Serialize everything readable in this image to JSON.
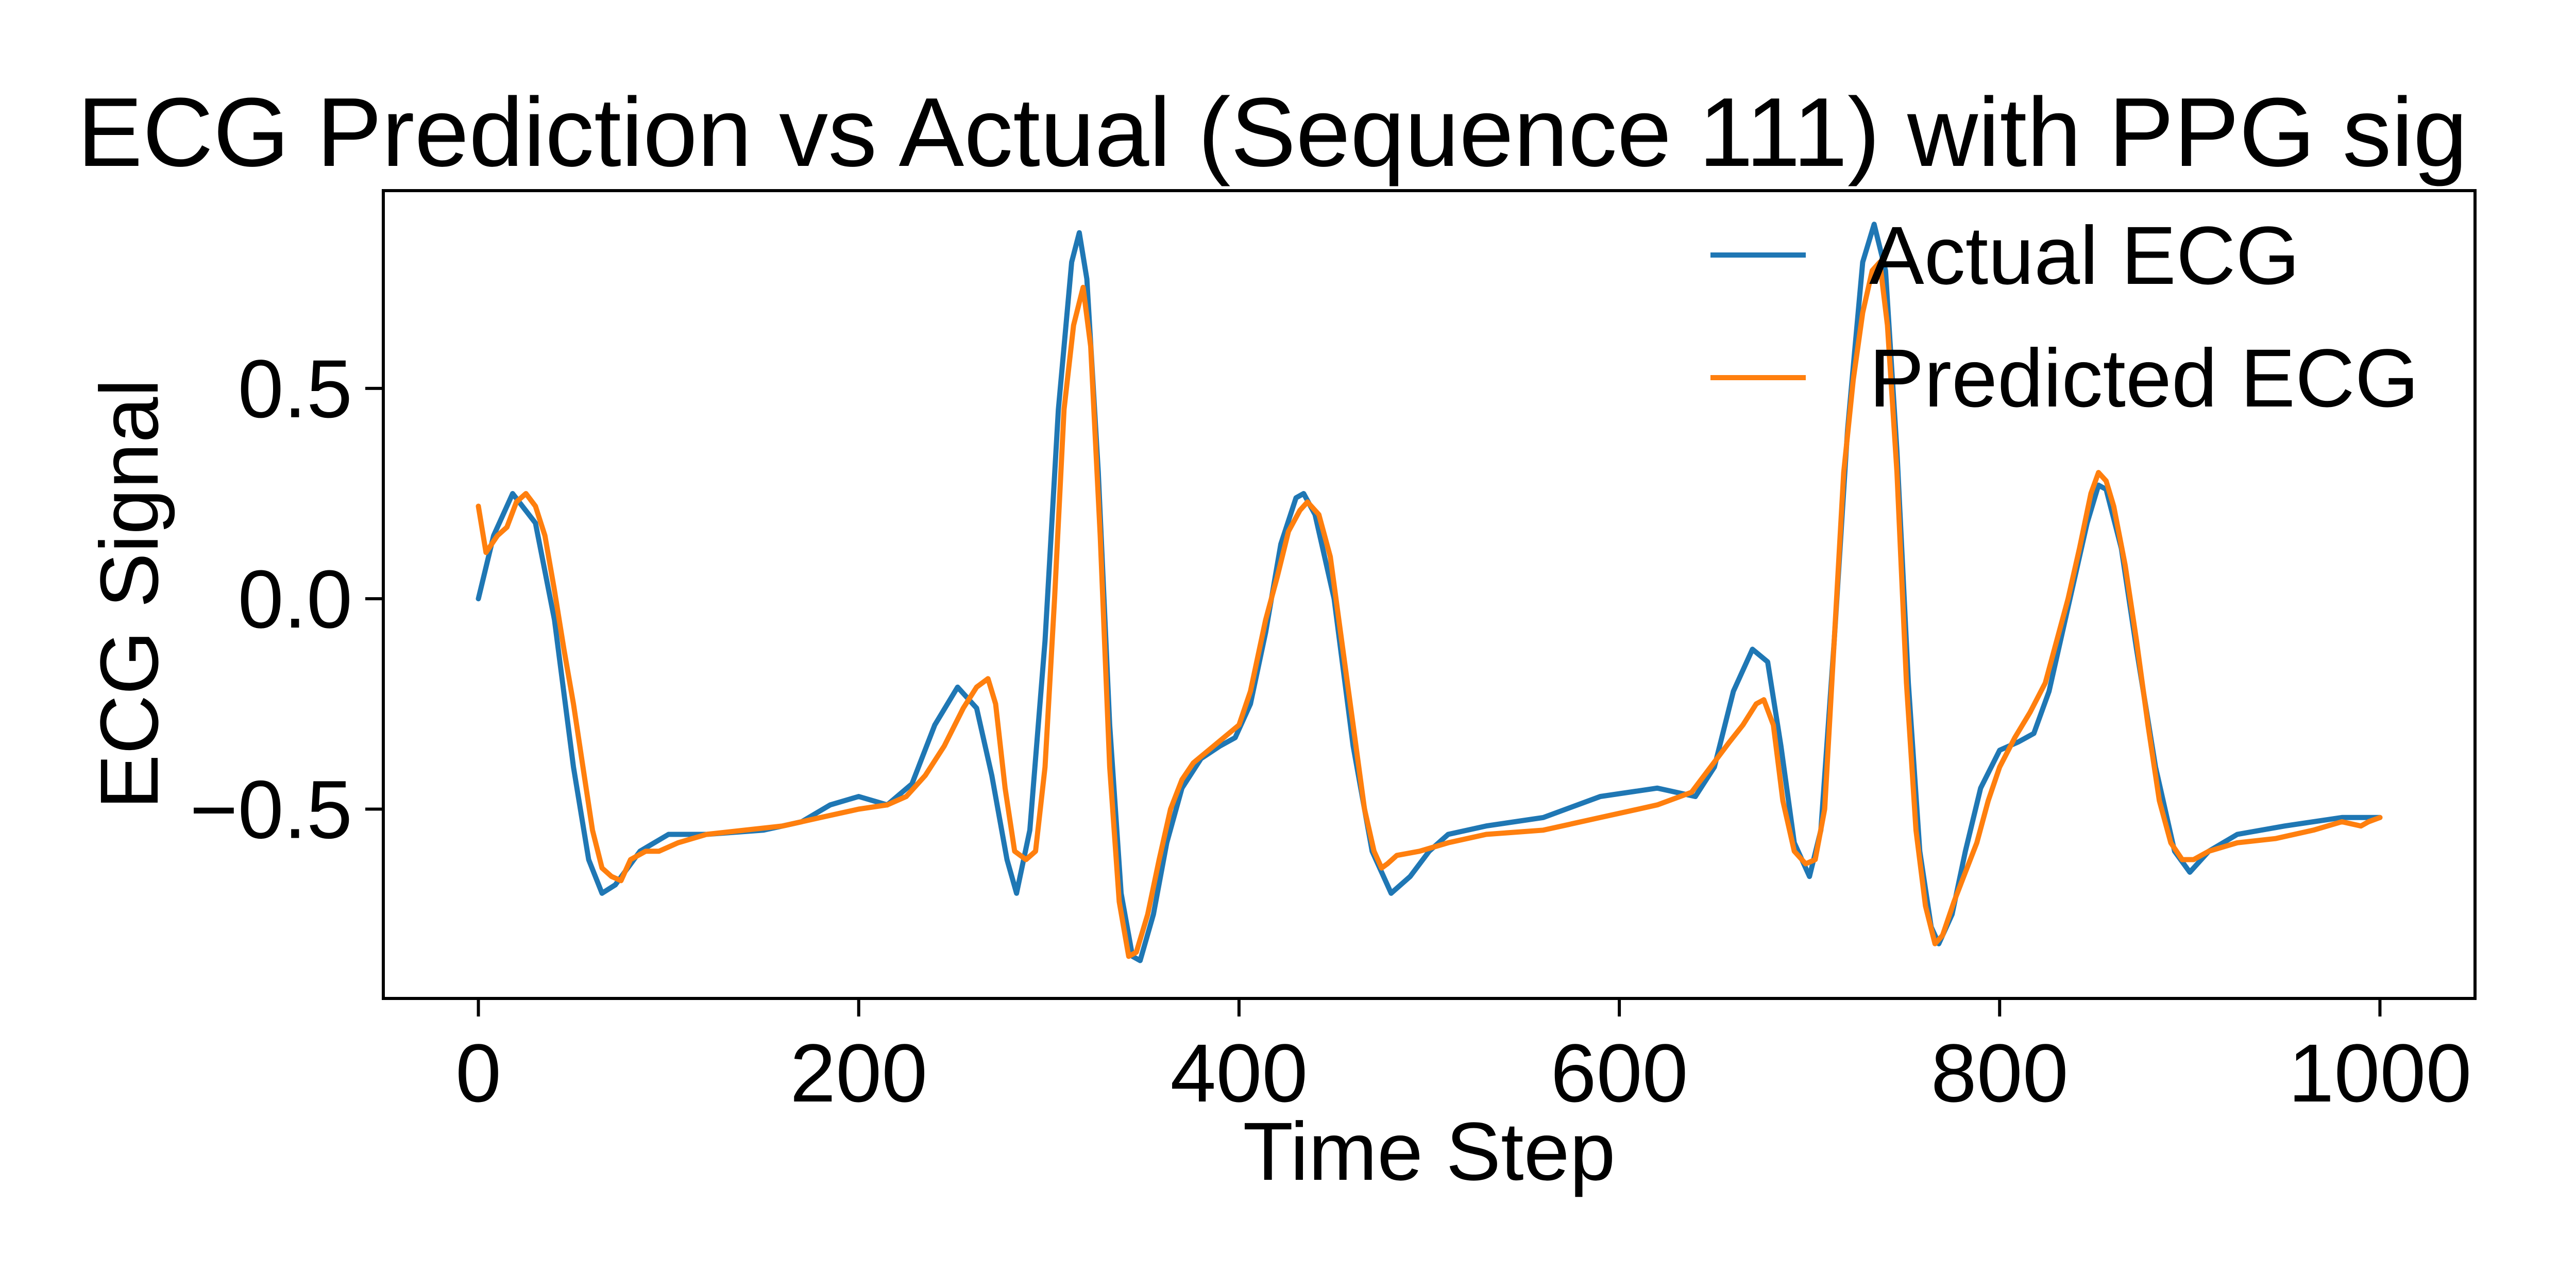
{
  "chart_data": {
    "type": "line",
    "title": "ECG Prediction vs Actual (Sequence 111) with PPG sig",
    "xlabel": "Time Step",
    "ylabel": "ECG Signal",
    "xlim": [
      -50,
      1050
    ],
    "ylim": [
      -0.95,
      0.97
    ],
    "xticks": [
      0,
      200,
      400,
      600,
      800,
      1000
    ],
    "xtick_labels": [
      "0",
      "200",
      "400",
      "600",
      "800",
      "1000"
    ],
    "yticks": [
      0.5,
      0.0,
      -0.5
    ],
    "ytick_labels": [
      "0.5",
      "0.0",
      "−0.5"
    ],
    "grid": false,
    "legend_position": "top-right",
    "series": [
      {
        "name": "Actual ECG",
        "color": "#1f77b4",
        "points": [
          [
            0,
            0.0
          ],
          [
            8,
            0.15
          ],
          [
            18,
            0.25
          ],
          [
            30,
            0.18
          ],
          [
            40,
            -0.05
          ],
          [
            50,
            -0.4
          ],
          [
            58,
            -0.62
          ],
          [
            65,
            -0.7
          ],
          [
            72,
            -0.68
          ],
          [
            85,
            -0.6
          ],
          [
            100,
            -0.56
          ],
          [
            120,
            -0.56
          ],
          [
            150,
            -0.55
          ],
          [
            170,
            -0.53
          ],
          [
            185,
            -0.49
          ],
          [
            200,
            -0.47
          ],
          [
            215,
            -0.49
          ],
          [
            228,
            -0.44
          ],
          [
            240,
            -0.3
          ],
          [
            252,
            -0.21
          ],
          [
            262,
            -0.26
          ],
          [
            270,
            -0.42
          ],
          [
            278,
            -0.62
          ],
          [
            283,
            -0.7
          ],
          [
            290,
            -0.55
          ],
          [
            298,
            -0.1
          ],
          [
            305,
            0.45
          ],
          [
            312,
            0.8
          ],
          [
            316,
            0.87
          ],
          [
            320,
            0.76
          ],
          [
            326,
            0.3
          ],
          [
            332,
            -0.3
          ],
          [
            338,
            -0.7
          ],
          [
            344,
            -0.85
          ],
          [
            348,
            -0.86
          ],
          [
            355,
            -0.75
          ],
          [
            362,
            -0.58
          ],
          [
            370,
            -0.45
          ],
          [
            380,
            -0.38
          ],
          [
            390,
            -0.35
          ],
          [
            398,
            -0.33
          ],
          [
            406,
            -0.25
          ],
          [
            414,
            -0.08
          ],
          [
            422,
            0.13
          ],
          [
            430,
            0.24
          ],
          [
            434,
            0.25
          ],
          [
            440,
            0.2
          ],
          [
            450,
            0.0
          ],
          [
            460,
            -0.35
          ],
          [
            470,
            -0.6
          ],
          [
            480,
            -0.7
          ],
          [
            490,
            -0.66
          ],
          [
            500,
            -0.6
          ],
          [
            510,
            -0.56
          ],
          [
            530,
            -0.54
          ],
          [
            560,
            -0.52
          ],
          [
            590,
            -0.47
          ],
          [
            620,
            -0.45
          ],
          [
            640,
            -0.47
          ],
          [
            650,
            -0.4
          ],
          [
            660,
            -0.22
          ],
          [
            670,
            -0.12
          ],
          [
            678,
            -0.15
          ],
          [
            685,
            -0.35
          ],
          [
            692,
            -0.58
          ],
          [
            700,
            -0.66
          ],
          [
            706,
            -0.55
          ],
          [
            713,
            -0.1
          ],
          [
            720,
            0.4
          ],
          [
            728,
            0.8
          ],
          [
            734,
            0.89
          ],
          [
            740,
            0.78
          ],
          [
            746,
            0.35
          ],
          [
            752,
            -0.2
          ],
          [
            758,
            -0.6
          ],
          [
            764,
            -0.78
          ],
          [
            768,
            -0.82
          ],
          [
            775,
            -0.75
          ],
          [
            782,
            -0.6
          ],
          [
            790,
            -0.45
          ],
          [
            800,
            -0.36
          ],
          [
            810,
            -0.34
          ],
          [
            818,
            -0.32
          ],
          [
            826,
            -0.22
          ],
          [
            836,
            -0.02
          ],
          [
            846,
            0.18
          ],
          [
            852,
            0.27
          ],
          [
            856,
            0.26
          ],
          [
            864,
            0.12
          ],
          [
            872,
            -0.12
          ],
          [
            882,
            -0.4
          ],
          [
            892,
            -0.6
          ],
          [
            900,
            -0.65
          ],
          [
            910,
            -0.6
          ],
          [
            925,
            -0.56
          ],
          [
            950,
            -0.54
          ],
          [
            980,
            -0.52
          ],
          [
            1000,
            -0.52
          ]
        ]
      },
      {
        "name": "Predicted ECG",
        "color": "#ff7f0e",
        "points": [
          [
            0,
            0.22
          ],
          [
            4,
            0.11
          ],
          [
            10,
            0.15
          ],
          [
            15,
            0.17
          ],
          [
            20,
            0.23
          ],
          [
            25,
            0.25
          ],
          [
            30,
            0.22
          ],
          [
            35,
            0.15
          ],
          [
            40,
            0.02
          ],
          [
            45,
            -0.12
          ],
          [
            50,
            -0.25
          ],
          [
            55,
            -0.4
          ],
          [
            60,
            -0.55
          ],
          [
            65,
            -0.64
          ],
          [
            70,
            -0.66
          ],
          [
            75,
            -0.67
          ],
          [
            80,
            -0.62
          ],
          [
            88,
            -0.6
          ],
          [
            95,
            -0.6
          ],
          [
            105,
            -0.58
          ],
          [
            120,
            -0.56
          ],
          [
            140,
            -0.55
          ],
          [
            160,
            -0.54
          ],
          [
            180,
            -0.52
          ],
          [
            200,
            -0.5
          ],
          [
            215,
            -0.49
          ],
          [
            225,
            -0.47
          ],
          [
            235,
            -0.42
          ],
          [
            245,
            -0.35
          ],
          [
            255,
            -0.26
          ],
          [
            262,
            -0.21
          ],
          [
            268,
            -0.19
          ],
          [
            272,
            -0.25
          ],
          [
            277,
            -0.45
          ],
          [
            282,
            -0.6
          ],
          [
            288,
            -0.62
          ],
          [
            293,
            -0.6
          ],
          [
            298,
            -0.4
          ],
          [
            303,
            0.0
          ],
          [
            308,
            0.45
          ],
          [
            313,
            0.65
          ],
          [
            318,
            0.74
          ],
          [
            322,
            0.6
          ],
          [
            327,
            0.15
          ],
          [
            332,
            -0.4
          ],
          [
            337,
            -0.72
          ],
          [
            342,
            -0.85
          ],
          [
            346,
            -0.84
          ],
          [
            352,
            -0.75
          ],
          [
            358,
            -0.62
          ],
          [
            364,
            -0.5
          ],
          [
            370,
            -0.43
          ],
          [
            376,
            -0.39
          ],
          [
            384,
            -0.36
          ],
          [
            392,
            -0.33
          ],
          [
            400,
            -0.3
          ],
          [
            406,
            -0.22
          ],
          [
            414,
            -0.05
          ],
          [
            420,
            0.05
          ],
          [
            426,
            0.16
          ],
          [
            432,
            0.21
          ],
          [
            436,
            0.23
          ],
          [
            442,
            0.2
          ],
          [
            448,
            0.1
          ],
          [
            454,
            -0.1
          ],
          [
            460,
            -0.3
          ],
          [
            466,
            -0.5
          ],
          [
            471,
            -0.6
          ],
          [
            475,
            -0.64
          ],
          [
            478,
            -0.63
          ],
          [
            483,
            -0.61
          ],
          [
            495,
            -0.6
          ],
          [
            510,
            -0.58
          ],
          [
            530,
            -0.56
          ],
          [
            560,
            -0.55
          ],
          [
            590,
            -0.52
          ],
          [
            620,
            -0.49
          ],
          [
            638,
            -0.46
          ],
          [
            648,
            -0.4
          ],
          [
            658,
            -0.34
          ],
          [
            665,
            -0.3
          ],
          [
            672,
            -0.25
          ],
          [
            676,
            -0.24
          ],
          [
            681,
            -0.3
          ],
          [
            686,
            -0.48
          ],
          [
            692,
            -0.6
          ],
          [
            698,
            -0.63
          ],
          [
            703,
            -0.62
          ],
          [
            708,
            -0.5
          ],
          [
            713,
            -0.1
          ],
          [
            718,
            0.3
          ],
          [
            723,
            0.52
          ],
          [
            728,
            0.68
          ],
          [
            733,
            0.78
          ],
          [
            737,
            0.8
          ],
          [
            741,
            0.65
          ],
          [
            746,
            0.3
          ],
          [
            751,
            -0.2
          ],
          [
            756,
            -0.55
          ],
          [
            761,
            -0.73
          ],
          [
            766,
            -0.82
          ],
          [
            770,
            -0.8
          ],
          [
            776,
            -0.72
          ],
          [
            782,
            -0.65
          ],
          [
            788,
            -0.58
          ],
          [
            794,
            -0.48
          ],
          [
            800,
            -0.4
          ],
          [
            808,
            -0.33
          ],
          [
            816,
            -0.27
          ],
          [
            824,
            -0.2
          ],
          [
            830,
            -0.1
          ],
          [
            836,
            0.0
          ],
          [
            842,
            0.12
          ],
          [
            848,
            0.25
          ],
          [
            852,
            0.3
          ],
          [
            856,
            0.28
          ],
          [
            860,
            0.22
          ],
          [
            866,
            0.08
          ],
          [
            872,
            -0.1
          ],
          [
            878,
            -0.3
          ],
          [
            884,
            -0.48
          ],
          [
            890,
            -0.58
          ],
          [
            896,
            -0.62
          ],
          [
            902,
            -0.62
          ],
          [
            910,
            -0.6
          ],
          [
            925,
            -0.58
          ],
          [
            945,
            -0.57
          ],
          [
            965,
            -0.55
          ],
          [
            980,
            -0.53
          ],
          [
            990,
            -0.54
          ],
          [
            994,
            -0.53
          ],
          [
            1000,
            -0.52
          ]
        ]
      }
    ]
  }
}
